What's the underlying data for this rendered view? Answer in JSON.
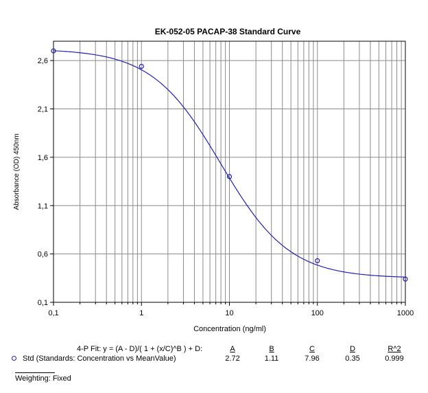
{
  "chart_data": {
    "type": "scatter",
    "title": "EK-052-05 PACAP-38  Standard Curve",
    "xlabel": "Concentration (ng/ml)",
    "ylabel": "Absorbance (OD) 450nm",
    "xscale": "log",
    "xlim": [
      0.1,
      1000
    ],
    "ylim": [
      0.1,
      2.8
    ],
    "x_ticks": [
      "0,1",
      "1",
      "10",
      "100",
      "1000"
    ],
    "x_tick_values": [
      0.1,
      1,
      10,
      100,
      1000
    ],
    "y_ticks": [
      "0,1",
      "0,6",
      "1,1",
      "1,6",
      "2,1",
      "2,6"
    ],
    "y_tick_values": [
      0.1,
      0.6,
      1.1,
      1.6,
      2.1,
      2.6
    ],
    "grid": true,
    "colors": {
      "series": "#1f1fb4"
    },
    "series": [
      {
        "name": "Std",
        "x": [
          0.1,
          1,
          10,
          100,
          1000
        ],
        "y": [
          2.7,
          2.54,
          1.4,
          0.53,
          0.34
        ]
      }
    ],
    "fit": {
      "model": "4-P",
      "A": 2.72,
      "B": 1.11,
      "C": 7.96,
      "D": 0.35
    }
  },
  "fit_table": {
    "equation": "4-P Fit: y = (A - D)/( 1 + (x/C)^B ) + D:",
    "headers": {
      "a": "A",
      "b": "B",
      "c": "C",
      "d": "D",
      "r2": "R^2"
    },
    "series_label": "Std (Standards: Concentration vs MeanValue)",
    "values": {
      "a": "2.72",
      "b": "1.11",
      "c": "7.96",
      "d": "0.35",
      "r2": "0.999"
    }
  },
  "weighting": "Weighting: Fixed"
}
